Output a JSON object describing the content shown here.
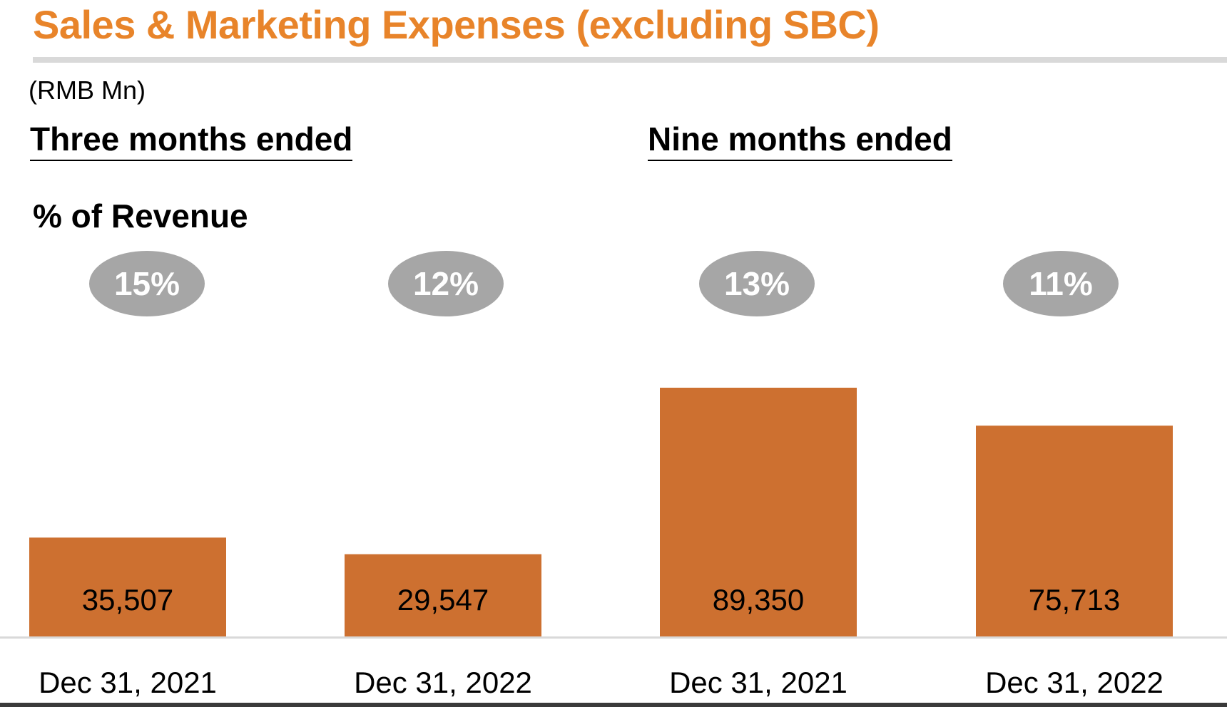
{
  "title": "Sales & Marketing Expenses (excluding SBC)",
  "unit_label": "(RMB Mn)",
  "section_three_months": "Three months ended",
  "section_nine_months": "Nine months ended",
  "pct_header": "% of Revenue",
  "colors": {
    "title": "#e8842a",
    "bar": "#cd7030",
    "bubble": "#a6a6a6",
    "bubble_text": "#ffffff"
  },
  "chart_data": {
    "type": "bar",
    "categories": [
      "Dec 31, 2021",
      "Dec 31, 2022",
      "Dec 31, 2021",
      "Dec 31, 2022"
    ],
    "groups": [
      "Three months ended",
      "Three months ended",
      "Nine months ended",
      "Nine months ended"
    ],
    "values": [
      35507,
      29547,
      89350,
      75713
    ],
    "value_labels": [
      "35,507",
      "29,547",
      "89,350",
      "75,713"
    ],
    "pct_of_revenue": [
      "15%",
      "12%",
      "13%",
      "11%"
    ],
    "title": "Sales & Marketing Expenses (excluding SBC)",
    "ylabel": "(RMB Mn)",
    "grid": false,
    "legend": "none"
  }
}
